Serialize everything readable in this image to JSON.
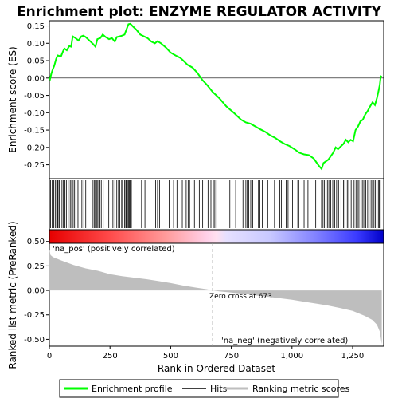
{
  "chart_data": {
    "type": "line",
    "title": "Enrichment plot: ENZYME REGULATOR ACTIVITY",
    "xlabel": "Rank in Ordered Dataset",
    "ylabel_top": "Enrichment score (ES)",
    "ylabel_bottom": "Ranked list metric (PreRanked)",
    "x_ticks": [
      0,
      250,
      500,
      750,
      1000,
      1250
    ],
    "x_range": [
      0,
      1378
    ],
    "es_ylim": [
      -0.29,
      0.165
    ],
    "es_ticks": [
      0.15,
      0.1,
      0.05,
      0.0,
      -0.05,
      -0.1,
      -0.15,
      -0.2,
      -0.25
    ],
    "es_tick_labels": [
      "0.15",
      "0.10",
      "0.05",
      "0.00",
      "-0.05",
      "-0.10",
      "-0.15",
      "-0.20",
      "-0.25"
    ],
    "metric_ylim": [
      -0.57,
      0.62
    ],
    "metric_ticks": [
      0.5,
      0.25,
      0.0,
      -0.25,
      -0.5
    ],
    "metric_tick_labels": [
      "0.50",
      "0.25",
      "0.00",
      "-0.25",
      "-0.50"
    ],
    "zero_cross": 673,
    "zero_cross_label": "Zero cross at 673",
    "pos_label": "'na_pos' (positively correlated)",
    "neg_label": "'na_neg' (negatively correlated)",
    "n_genes": 1370,
    "es_curve": [
      [
        0,
        0.0
      ],
      [
        3,
        -0.003
      ],
      [
        8,
        0.012
      ],
      [
        14,
        0.025
      ],
      [
        20,
        0.035
      ],
      [
        28,
        0.055
      ],
      [
        34,
        0.065
      ],
      [
        48,
        0.062
      ],
      [
        55,
        0.075
      ],
      [
        62,
        0.085
      ],
      [
        72,
        0.08
      ],
      [
        82,
        0.092
      ],
      [
        90,
        0.09
      ],
      [
        96,
        0.12
      ],
      [
        108,
        0.115
      ],
      [
        120,
        0.108
      ],
      [
        132,
        0.12
      ],
      [
        140,
        0.122
      ],
      [
        150,
        0.118
      ],
      [
        165,
        0.108
      ],
      [
        180,
        0.098
      ],
      [
        190,
        0.09
      ],
      [
        198,
        0.112
      ],
      [
        210,
        0.115
      ],
      [
        220,
        0.125
      ],
      [
        232,
        0.118
      ],
      [
        246,
        0.112
      ],
      [
        258,
        0.115
      ],
      [
        270,
        0.105
      ],
      [
        278,
        0.118
      ],
      [
        290,
        0.12
      ],
      [
        300,
        0.122
      ],
      [
        310,
        0.125
      ],
      [
        318,
        0.14
      ],
      [
        326,
        0.155
      ],
      [
        334,
        0.156
      ],
      [
        345,
        0.148
      ],
      [
        360,
        0.138
      ],
      [
        375,
        0.125
      ],
      [
        390,
        0.12
      ],
      [
        405,
        0.115
      ],
      [
        420,
        0.105
      ],
      [
        435,
        0.1
      ],
      [
        446,
        0.106
      ],
      [
        460,
        0.1
      ],
      [
        480,
        0.088
      ],
      [
        500,
        0.073
      ],
      [
        520,
        0.065
      ],
      [
        540,
        0.058
      ],
      [
        555,
        0.048
      ],
      [
        570,
        0.038
      ],
      [
        590,
        0.03
      ],
      [
        610,
        0.015
      ],
      [
        630,
        -0.005
      ],
      [
        650,
        -0.02
      ],
      [
        673,
        -0.04
      ],
      [
        700,
        -0.058
      ],
      [
        730,
        -0.082
      ],
      [
        760,
        -0.1
      ],
      [
        790,
        -0.12
      ],
      [
        810,
        -0.128
      ],
      [
        830,
        -0.132
      ],
      [
        850,
        -0.14
      ],
      [
        870,
        -0.148
      ],
      [
        890,
        -0.155
      ],
      [
        910,
        -0.165
      ],
      [
        930,
        -0.172
      ],
      [
        950,
        -0.182
      ],
      [
        970,
        -0.19
      ],
      [
        990,
        -0.196
      ],
      [
        1010,
        -0.205
      ],
      [
        1030,
        -0.215
      ],
      [
        1050,
        -0.22
      ],
      [
        1070,
        -0.222
      ],
      [
        1090,
        -0.232
      ],
      [
        1110,
        -0.252
      ],
      [
        1122,
        -0.262
      ],
      [
        1130,
        -0.245
      ],
      [
        1140,
        -0.24
      ],
      [
        1150,
        -0.235
      ],
      [
        1160,
        -0.225
      ],
      [
        1170,
        -0.215
      ],
      [
        1180,
        -0.2
      ],
      [
        1190,
        -0.205
      ],
      [
        1200,
        -0.198
      ],
      [
        1212,
        -0.19
      ],
      [
        1222,
        -0.178
      ],
      [
        1232,
        -0.185
      ],
      [
        1242,
        -0.178
      ],
      [
        1252,
        -0.182
      ],
      [
        1262,
        -0.15
      ],
      [
        1272,
        -0.14
      ],
      [
        1282,
        -0.125
      ],
      [
        1292,
        -0.12
      ],
      [
        1302,
        -0.105
      ],
      [
        1312,
        -0.095
      ],
      [
        1322,
        -0.082
      ],
      [
        1332,
        -0.07
      ],
      [
        1342,
        -0.078
      ],
      [
        1350,
        -0.058
      ],
      [
        1356,
        -0.04
      ],
      [
        1362,
        -0.02
      ],
      [
        1366,
        0.005
      ],
      [
        1370,
        0.003
      ]
    ],
    "metric_profile": [
      [
        0,
        0.42
      ],
      [
        5,
        0.36
      ],
      [
        15,
        0.34
      ],
      [
        50,
        0.305
      ],
      [
        100,
        0.26
      ],
      [
        150,
        0.225
      ],
      [
        200,
        0.2
      ],
      [
        250,
        0.165
      ],
      [
        300,
        0.145
      ],
      [
        350,
        0.13
      ],
      [
        400,
        0.115
      ],
      [
        450,
        0.095
      ],
      [
        500,
        0.075
      ],
      [
        550,
        0.05
      ],
      [
        600,
        0.03
      ],
      [
        650,
        0.012
      ],
      [
        673,
        0.0
      ],
      [
        700,
        -0.01
      ],
      [
        750,
        -0.022
      ],
      [
        800,
        -0.035
      ],
      [
        850,
        -0.05
      ],
      [
        900,
        -0.065
      ],
      [
        950,
        -0.08
      ],
      [
        1000,
        -0.095
      ],
      [
        1050,
        -0.115
      ],
      [
        1100,
        -0.135
      ],
      [
        1150,
        -0.155
      ],
      [
        1200,
        -0.18
      ],
      [
        1250,
        -0.21
      ],
      [
        1300,
        -0.26
      ],
      [
        1330,
        -0.3
      ],
      [
        1350,
        -0.35
      ],
      [
        1362,
        -0.42
      ],
      [
        1368,
        -0.52
      ],
      [
        1370,
        -0.55
      ]
    ],
    "hits": [
      5,
      12,
      18,
      24,
      30,
      33,
      36,
      41,
      52,
      58,
      64,
      70,
      78,
      86,
      92,
      98,
      104,
      118,
      126,
      134,
      142,
      150,
      180,
      186,
      190,
      196,
      200,
      208,
      214,
      222,
      245,
      262,
      270,
      278,
      285,
      290,
      298,
      302,
      310,
      315,
      318,
      322,
      326,
      330,
      333,
      338,
      380,
      394,
      438,
      446,
      454,
      494,
      512,
      526,
      548,
      564,
      572,
      578,
      598,
      618,
      632,
      654,
      666,
      676,
      682,
      690,
      744,
      768,
      798,
      810,
      816,
      822,
      830,
      838,
      862,
      868,
      878,
      900,
      928,
      950,
      956,
      976,
      984,
      1002,
      1024,
      1028,
      1050,
      1066,
      1098,
      1122,
      1128,
      1134,
      1140,
      1146,
      1152,
      1160,
      1168,
      1176,
      1184,
      1192,
      1202,
      1212,
      1218,
      1228,
      1234,
      1244,
      1256,
      1264,
      1270,
      1276,
      1284,
      1290,
      1296,
      1304,
      1312,
      1318,
      1326,
      1332,
      1338,
      1344,
      1350,
      1356,
      1360,
      1364
    ],
    "legend": [
      {
        "label": "Enrichment profile",
        "color": "#00ff00"
      },
      {
        "label": "Hits",
        "color": "#000000"
      },
      {
        "label": "Ranking metric scores",
        "color": "#bebebe"
      }
    ],
    "colors": {
      "es_line": "#00ff00",
      "hit": "#000000",
      "metric_fill": "#bebebe",
      "pos_text": "#ff0000",
      "neg_text": "#0000ff",
      "zero_line": "#a0a0a0"
    }
  }
}
